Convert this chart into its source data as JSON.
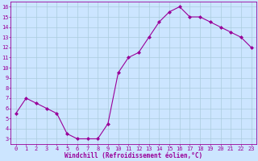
{
  "x": [
    0,
    1,
    2,
    3,
    4,
    5,
    6,
    7,
    8,
    9,
    10,
    11,
    12,
    13,
    14,
    15,
    16,
    17,
    18,
    19,
    20,
    21,
    22,
    23
  ],
  "y": [
    5.5,
    7.0,
    6.5,
    6.0,
    5.5,
    3.5,
    3.0,
    3.0,
    3.0,
    4.5,
    9.5,
    11.0,
    11.5,
    13.0,
    14.5,
    15.5,
    16.0,
    15.0,
    15.0,
    14.5,
    14.0,
    13.5,
    13.0,
    12.0
  ],
  "line_color": "#990099",
  "marker": "D",
  "marker_size": 2,
  "bg_color": "#cce5ff",
  "grid_color": "#aaccdd",
  "xlabel": "Windchill (Refroidissement éolien,°C)",
  "xlabel_color": "#990099",
  "tick_color": "#990099",
  "label_color": "#990099",
  "ylim_min": 2.5,
  "ylim_max": 16.5,
  "xlim_min": -0.5,
  "xlim_max": 23.5,
  "yticks": [
    3,
    4,
    5,
    6,
    7,
    8,
    9,
    10,
    11,
    12,
    13,
    14,
    15,
    16
  ],
  "xticks": [
    0,
    1,
    2,
    3,
    4,
    5,
    6,
    7,
    8,
    9,
    10,
    11,
    12,
    13,
    14,
    15,
    16,
    17,
    18,
    19,
    20,
    21,
    22,
    23
  ],
  "xlabel_fontsize": 5.5,
  "tick_fontsize": 5
}
